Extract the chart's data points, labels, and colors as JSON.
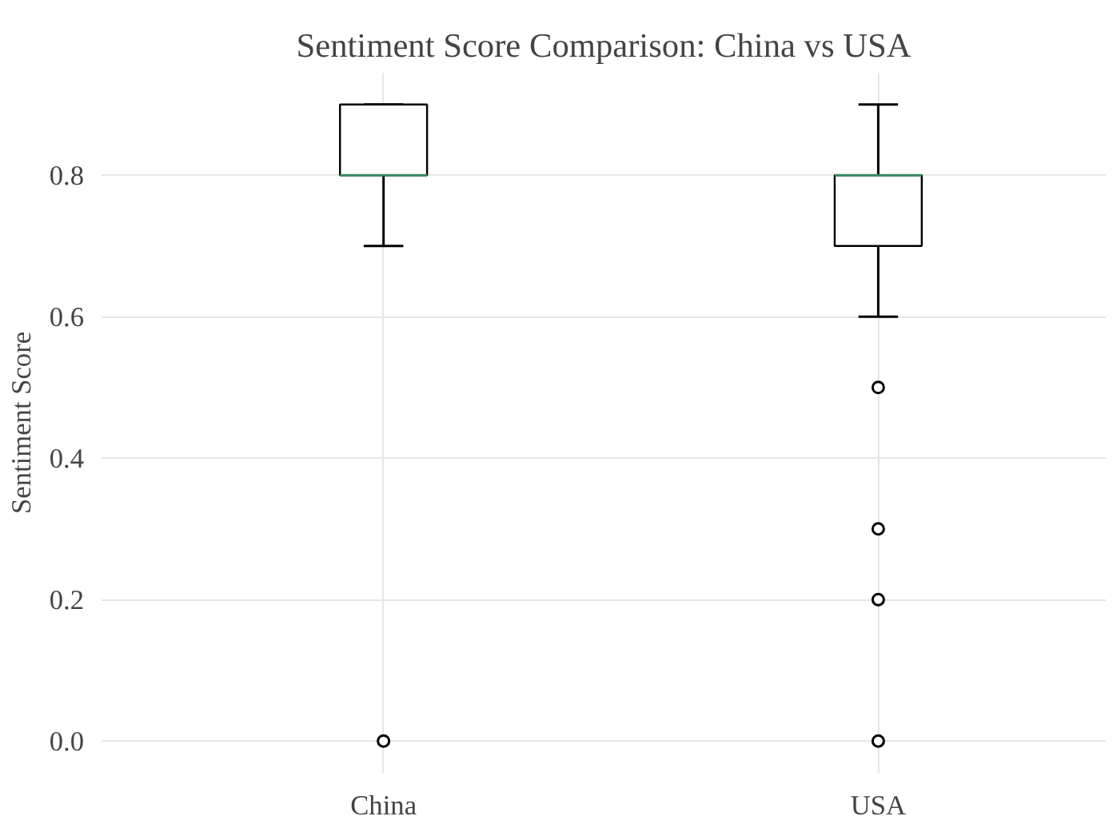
{
  "chart_data": {
    "type": "box",
    "title": "Sentiment Score Comparison: China vs USA",
    "ylabel": "Sentiment Score",
    "categories": [
      "China",
      "USA"
    ],
    "boxes": [
      {
        "low": 0.7,
        "q1": 0.8,
        "median": 0.8,
        "q3": 0.9,
        "high": 0.9,
        "outliers": [
          0.0
        ]
      },
      {
        "low": 0.6,
        "q1": 0.7,
        "median": 0.8,
        "q3": 0.8,
        "high": 0.9,
        "outliers": [
          0.5,
          0.3,
          0.2,
          0.0
        ]
      }
    ],
    "color": "#000000",
    "ylim": [
      -0.045,
      0.945
    ],
    "yticks": [
      {
        "value": 0,
        "label": "0.0"
      },
      {
        "value": 0.2,
        "label": "0.2"
      },
      {
        "value": 0.4,
        "label": "0.4"
      },
      {
        "value": 0.6,
        "label": "0.6"
      },
      {
        "value": 0.8,
        "label": "0.8"
      }
    ],
    "grid": true
  }
}
